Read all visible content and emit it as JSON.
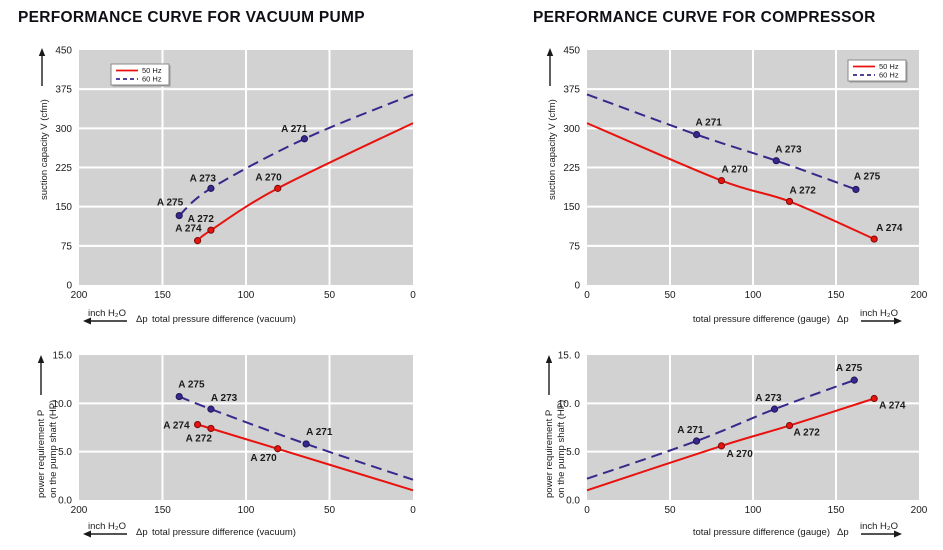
{
  "titles": {
    "left": "PERFORMANCE CURVE FOR VACUUM PUMP",
    "right": "PERFORMANCE CURVE FOR COMPRESSOR"
  },
  "colors": {
    "red": "#e8120e",
    "red_dark": "#7a0d0a",
    "blue": "#37298c",
    "blue_dark": "#1c1458",
    "plot_bg": "#d2d2d2",
    "grid": "#ffffff",
    "text": "#1a1a1a"
  },
  "legend": {
    "items": [
      {
        "label": "50 Hz",
        "dash": false,
        "color": "#e8120e"
      },
      {
        "label": "60 Hz",
        "dash": true,
        "color": "#37298c"
      }
    ]
  },
  "chart_data": [
    {
      "id": "vacuum-capacity",
      "type": "line",
      "ylabel_lines": [
        "suction capacity V (cfm)"
      ],
      "xlabel": "total pressure difference (vacuum)",
      "dp": "Δp",
      "dp_pos": "before",
      "xunit": "inch H₂O",
      "x_arrow": "left",
      "xlim": [
        200,
        0
      ],
      "ylim": [
        0,
        450
      ],
      "xticks": [
        {
          "v": 200,
          "t": "200"
        },
        {
          "v": 150,
          "t": "150"
        },
        {
          "v": 100,
          "t": "100"
        },
        {
          "v": 50,
          "t": "50"
        },
        {
          "v": 0,
          "t": "0"
        }
      ],
      "yticks": [
        {
          "v": 450,
          "t": "450"
        },
        {
          "v": 375,
          "t": "375"
        },
        {
          "v": 300,
          "t": "300"
        },
        {
          "v": 225,
          "t": "225"
        },
        {
          "v": 150,
          "t": "150"
        },
        {
          "v": 75,
          "t": "75"
        },
        {
          "v": 0,
          "t": "0"
        }
      ],
      "grid_x": [
        150,
        100,
        50
      ],
      "grid_y": [
        75,
        150,
        225,
        300,
        375
      ],
      "legend_pos": "top-left",
      "series": [
        {
          "name": "50 Hz",
          "color": "#e8120e",
          "dot_stroke": "#7a0d0a",
          "dash": false,
          "points": [
            {
              "x": 129,
              "y": 85,
              "label": "A 274",
              "anchor": "end",
              "ldx": 4,
              "ldy": -9
            },
            {
              "x": 121,
              "y": 105,
              "label": "A 272",
              "anchor": "end",
              "ldx": 3,
              "ldy": -8
            },
            {
              "x": 81,
              "y": 185,
              "label": "A 270",
              "anchor": "end",
              "ldx": 4,
              "ldy": -8
            },
            {
              "x": 0,
              "y": 310
            }
          ]
        },
        {
          "name": "60 Hz",
          "color": "#37298c",
          "dot_stroke": "#1c1458",
          "dash": true,
          "points": [
            {
              "x": 140,
              "y": 133,
              "label": "A 275",
              "anchor": "end",
              "ldx": 4,
              "ldy": -10
            },
            {
              "x": 121,
              "y": 185,
              "label": "A 273",
              "anchor": "end",
              "ldx": 5,
              "ldy": -7
            },
            {
              "x": 65,
              "y": 280,
              "label": "A 271",
              "anchor": "end",
              "ldx": 3,
              "ldy": -7
            },
            {
              "x": 0,
              "y": 365
            }
          ]
        }
      ]
    },
    {
      "id": "vacuum-power",
      "type": "line",
      "ylabel_lines": [
        "power requirement P",
        "on the pump shaft (HP)"
      ],
      "xlabel": "total pressure difference (vacuum)",
      "dp": "Δp",
      "dp_pos": "before",
      "xunit": "inch H₂O",
      "x_arrow": "left",
      "xlim": [
        200,
        0
      ],
      "ylim": [
        0,
        15
      ],
      "xticks": [
        {
          "v": 200,
          "t": "200"
        },
        {
          "v": 150,
          "t": "150"
        },
        {
          "v": 100,
          "t": "100"
        },
        {
          "v": 50,
          "t": "50"
        },
        {
          "v": 0,
          "t": "0"
        }
      ],
      "yticks": [
        {
          "v": 15,
          "t": "15.0"
        },
        {
          "v": 10,
          "t": "10.0"
        },
        {
          "v": 5,
          "t": "5.0"
        },
        {
          "v": 0,
          "t": "0.0"
        }
      ],
      "grid_x": [
        150,
        100,
        50
      ],
      "grid_y": [
        5,
        10
      ],
      "legend_pos": null,
      "series": [
        {
          "name": "50 Hz",
          "color": "#e8120e",
          "dot_stroke": "#7a0d0a",
          "dash": false,
          "points": [
            {
              "x": 129,
              "y": 7.8,
              "label": "A 274",
              "anchor": "end",
              "ldx": -8,
              "ldy": 4
            },
            {
              "x": 121,
              "y": 7.4,
              "label": "A 272",
              "anchor": "end",
              "ldx": 1,
              "ldy": 13
            },
            {
              "x": 81,
              "y": 5.3,
              "label": "A 270",
              "anchor": "end",
              "ldx": -1,
              "ldy": 12
            },
            {
              "x": 0,
              "y": 1.0
            }
          ]
        },
        {
          "name": "60 Hz",
          "color": "#37298c",
          "dot_stroke": "#1c1458",
          "dash": true,
          "points": [
            {
              "x": 140,
              "y": 10.7,
              "label": "A 275",
              "anchor": "start",
              "ldx": -1,
              "ldy": -9
            },
            {
              "x": 121,
              "y": 9.4,
              "label": "A 273",
              "anchor": "start",
              "ldx": 0,
              "ldy": -8
            },
            {
              "x": 64,
              "y": 5.8,
              "label": "A 271",
              "anchor": "start",
              "ldx": 0,
              "ldy": -9
            },
            {
              "x": 0,
              "y": 2.1
            }
          ]
        }
      ]
    },
    {
      "id": "compressor-capacity",
      "type": "line",
      "ylabel_lines": [
        "suction capacity V (cfm)"
      ],
      "xlabel": "total pressure difference (gauge)",
      "dp": "Δp",
      "dp_pos": "after",
      "xunit": "inch H₂O",
      "x_arrow": "right",
      "xlim": [
        0,
        200
      ],
      "ylim": [
        0,
        450
      ],
      "xticks": [
        {
          "v": 0,
          "t": "0"
        },
        {
          "v": 50,
          "t": "50"
        },
        {
          "v": 100,
          "t": "100"
        },
        {
          "v": 150,
          "t": "150"
        },
        {
          "v": 200,
          "t": "200"
        }
      ],
      "yticks": [
        {
          "v": 450,
          "t": "450"
        },
        {
          "v": 375,
          "t": "375"
        },
        {
          "v": 300,
          "t": "300"
        },
        {
          "v": 225,
          "t": "225"
        },
        {
          "v": 150,
          "t": "150"
        },
        {
          "v": 75,
          "t": "75"
        },
        {
          "v": 0,
          "t": "0"
        }
      ],
      "grid_x": [
        50,
        100,
        150
      ],
      "grid_y": [
        75,
        150,
        225,
        300,
        375
      ],
      "legend_pos": "top-right",
      "series": [
        {
          "name": "50 Hz",
          "color": "#e8120e",
          "dot_stroke": "#7a0d0a",
          "dash": false,
          "points": [
            {
              "x": 0,
              "y": 310
            },
            {
              "x": 81,
              "y": 200,
              "label": "A 270",
              "anchor": "start",
              "ldx": 0,
              "ldy": -8
            },
            {
              "x": 122,
              "y": 160,
              "label": "A 272",
              "anchor": "start",
              "ldx": 0,
              "ldy": -8
            },
            {
              "x": 173,
              "y": 88,
              "label": "A 274",
              "anchor": "start",
              "ldx": 2,
              "ldy": -8
            }
          ]
        },
        {
          "name": "60 Hz",
          "color": "#37298c",
          "dot_stroke": "#1c1458",
          "dash": true,
          "points": [
            {
              "x": 0,
              "y": 365
            },
            {
              "x": 66,
              "y": 288,
              "label": "A 271",
              "anchor": "start",
              "ldx": -1,
              "ldy": -9
            },
            {
              "x": 114,
              "y": 238,
              "label": "A 273",
              "anchor": "start",
              "ldx": -1,
              "ldy": -8
            },
            {
              "x": 162,
              "y": 183,
              "label": "A 275",
              "anchor": "start",
              "ldx": -2,
              "ldy": -10
            }
          ]
        }
      ]
    },
    {
      "id": "compressor-power",
      "type": "line",
      "ylabel_lines": [
        "power requirement P",
        "on the pump shaft (HP)"
      ],
      "xlabel": "total pressure difference (gauge)",
      "dp": "Δp",
      "dp_pos": "after",
      "xunit": "inch H₂O",
      "x_arrow": "right",
      "xlim": [
        0,
        200
      ],
      "ylim": [
        0,
        15
      ],
      "xticks": [
        {
          "v": 0,
          "t": "0"
        },
        {
          "v": 50,
          "t": "50"
        },
        {
          "v": 100,
          "t": "100"
        },
        {
          "v": 150,
          "t": "150"
        },
        {
          "v": 200,
          "t": "200"
        }
      ],
      "yticks": [
        {
          "v": 15,
          "t": "15. 0"
        },
        {
          "v": 10,
          "t": "10. 0"
        },
        {
          "v": 5,
          "t": "5.0"
        },
        {
          "v": 0,
          "t": "0.0"
        }
      ],
      "grid_x": [
        50,
        100,
        150
      ],
      "grid_y": [
        5,
        10
      ],
      "legend_pos": null,
      "series": [
        {
          "name": "50 Hz",
          "color": "#e8120e",
          "dot_stroke": "#7a0d0a",
          "dash": false,
          "points": [
            {
              "x": 0,
              "y": 1.0
            },
            {
              "x": 81,
              "y": 5.6,
              "label": "A 270",
              "anchor": "start",
              "ldx": 5,
              "ldy": 11
            },
            {
              "x": 122,
              "y": 7.7,
              "label": "A 272",
              "anchor": "start",
              "ldx": 4,
              "ldy": 10
            },
            {
              "x": 173,
              "y": 10.5,
              "label": "A 274",
              "anchor": "start",
              "ldx": 5,
              "ldy": 10
            }
          ]
        },
        {
          "name": "60 Hz",
          "color": "#37298c",
          "dot_stroke": "#1c1458",
          "dash": true,
          "points": [
            {
              "x": 0,
              "y": 2.2
            },
            {
              "x": 66,
              "y": 6.1,
              "label": "A 271",
              "anchor": "end",
              "ldx": 7,
              "ldy": -8
            },
            {
              "x": 113,
              "y": 9.4,
              "label": "A 273",
              "anchor": "end",
              "ldx": 7,
              "ldy": -8
            },
            {
              "x": 161,
              "y": 12.4,
              "label": "A 275",
              "anchor": "end",
              "ldx": 8,
              "ldy": -9
            }
          ]
        }
      ]
    }
  ]
}
